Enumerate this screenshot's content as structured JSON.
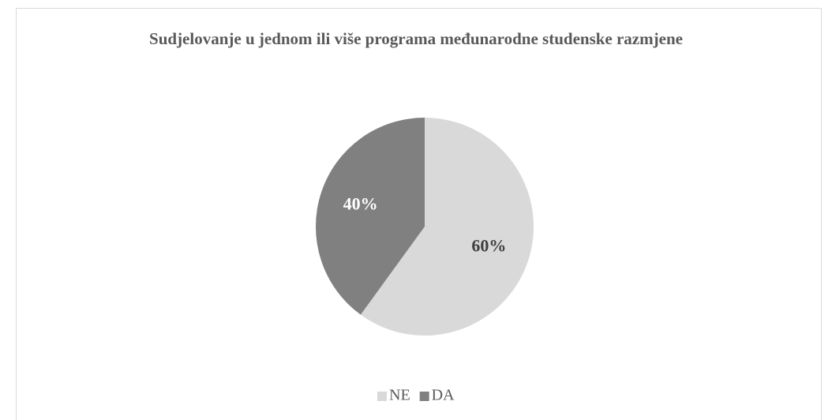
{
  "chart_data": {
    "type": "pie",
    "title": "Sudjelovanje u jednom ili više programa međunarodne studenske razmjene",
    "categories": [
      "NE",
      "DA"
    ],
    "values": [
      60,
      40
    ],
    "value_labels": [
      "60%",
      "40%"
    ],
    "colors": [
      "#d9d9d9",
      "#808080"
    ],
    "legend": "bottom"
  }
}
